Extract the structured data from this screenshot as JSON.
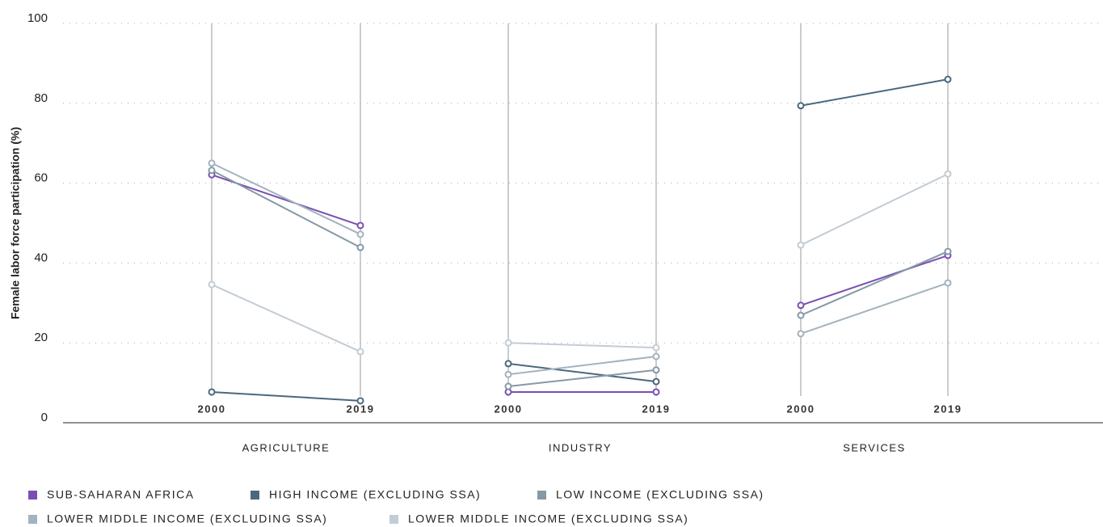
{
  "chart_data": {
    "type": "line",
    "y_label": "Female labor force participation (%)",
    "groups": [
      "AGRICULTURE",
      "INDUSTRY",
      "SERVICES"
    ],
    "categories": [
      "2000",
      "2019",
      "2000",
      "2019",
      "2000",
      "2019"
    ],
    "ylim": [
      0,
      100
    ],
    "yticks": [
      0,
      20,
      40,
      60,
      80,
      100
    ],
    "grid": true,
    "series": [
      {
        "name": "SUB-SAHARAN AFRICA",
        "color": "#7a4fb3",
        "values": [
          62.1,
          49.4,
          7.7,
          7.7,
          29.4,
          41.9
        ]
      },
      {
        "name": "HIGH INCOME (EXCLUDING SSA)",
        "color": "#4b687c",
        "values": [
          7.7,
          5.5,
          14.8,
          10.3,
          79.4,
          86.0
        ]
      },
      {
        "name": "LOW INCOME (EXCLUDING SSA)",
        "color": "#8599a7",
        "values": [
          63.2,
          43.9,
          9.1,
          13.2,
          26.9,
          42.9
        ]
      },
      {
        "name": "LOWER MIDDLE INCOME (EXCLUDING SSA)",
        "color": "#a2b3be",
        "values": [
          65.0,
          47.2,
          12.1,
          16.6,
          22.3,
          35.0
        ]
      },
      {
        "name": "LOWER MIDDLE INCOME (EXCLUDING SSA)",
        "color": "#c3ccd4",
        "values": [
          34.6,
          17.8,
          20.0,
          18.8,
          44.5,
          62.3
        ]
      }
    ]
  }
}
